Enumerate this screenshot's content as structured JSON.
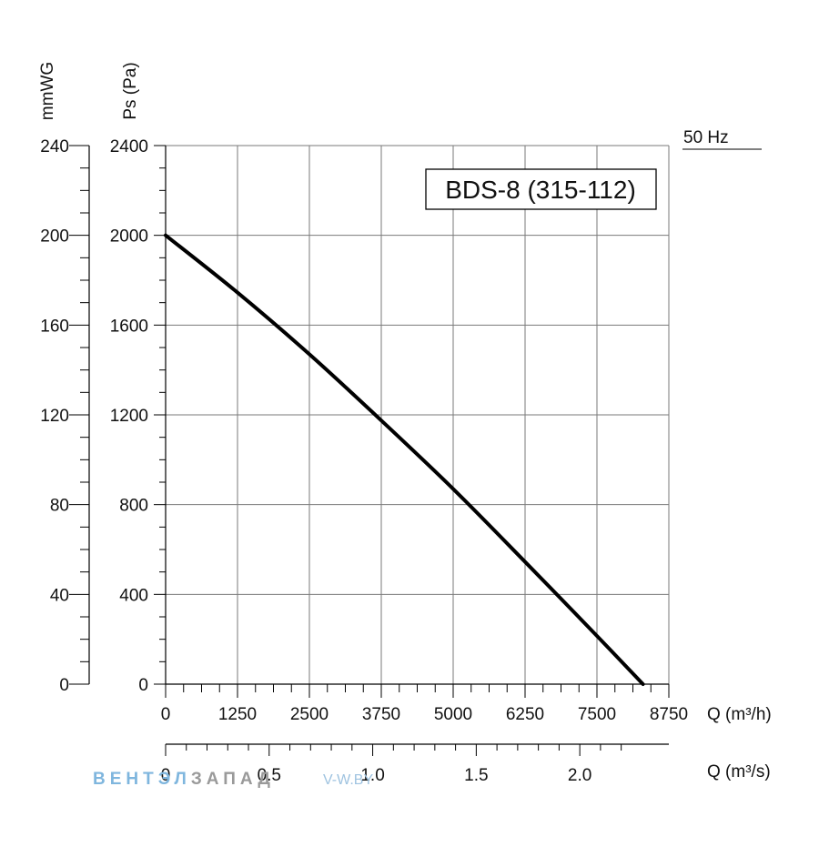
{
  "chart_data": {
    "type": "line",
    "title": "BDS-8 (315-112)",
    "frequency_label": "50 Hz",
    "x_primary": {
      "label": "Q (m³/h)",
      "range": [
        0,
        8750
      ],
      "ticks": [
        "0",
        "1250",
        "2500",
        "3750",
        "5000",
        "6250",
        "7500",
        "8750"
      ]
    },
    "x_secondary": {
      "label": "Q (m³/s)",
      "range": [
        0,
        2.43
      ],
      "ticks": [
        {
          "value": 0,
          "label": "0"
        },
        {
          "value": 0.5,
          "label": "0.5"
        },
        {
          "value": 1.0,
          "label": "1.0"
        },
        {
          "value": 1.5,
          "label": "1.5"
        },
        {
          "value": 2.0,
          "label": "2.0"
        }
      ]
    },
    "y_primary": {
      "label": "Ps (Pa)",
      "range": [
        0,
        2400
      ],
      "ticks": [
        "0",
        "400",
        "800",
        "1200",
        "1600",
        "2000",
        "2400"
      ]
    },
    "y_secondary": {
      "label": "mmWG",
      "range": [
        0,
        240
      ],
      "ticks": [
        "0",
        "40",
        "80",
        "120",
        "160",
        "200",
        "240"
      ]
    },
    "series": [
      {
        "x": [
          0,
          1250,
          2500,
          3750,
          5000,
          6250,
          7500,
          8300
        ],
        "y": [
          2000,
          1745,
          1470,
          1175,
          870,
          545,
          215,
          0
        ]
      }
    ],
    "grid": true,
    "line_color": "#000000"
  },
  "watermark": {
    "brand_part1": "ВЕНТ",
    "brand_part2": "ЭЛ",
    "brand_part3": "ЗАПАД",
    "site": "V-W.BY"
  }
}
